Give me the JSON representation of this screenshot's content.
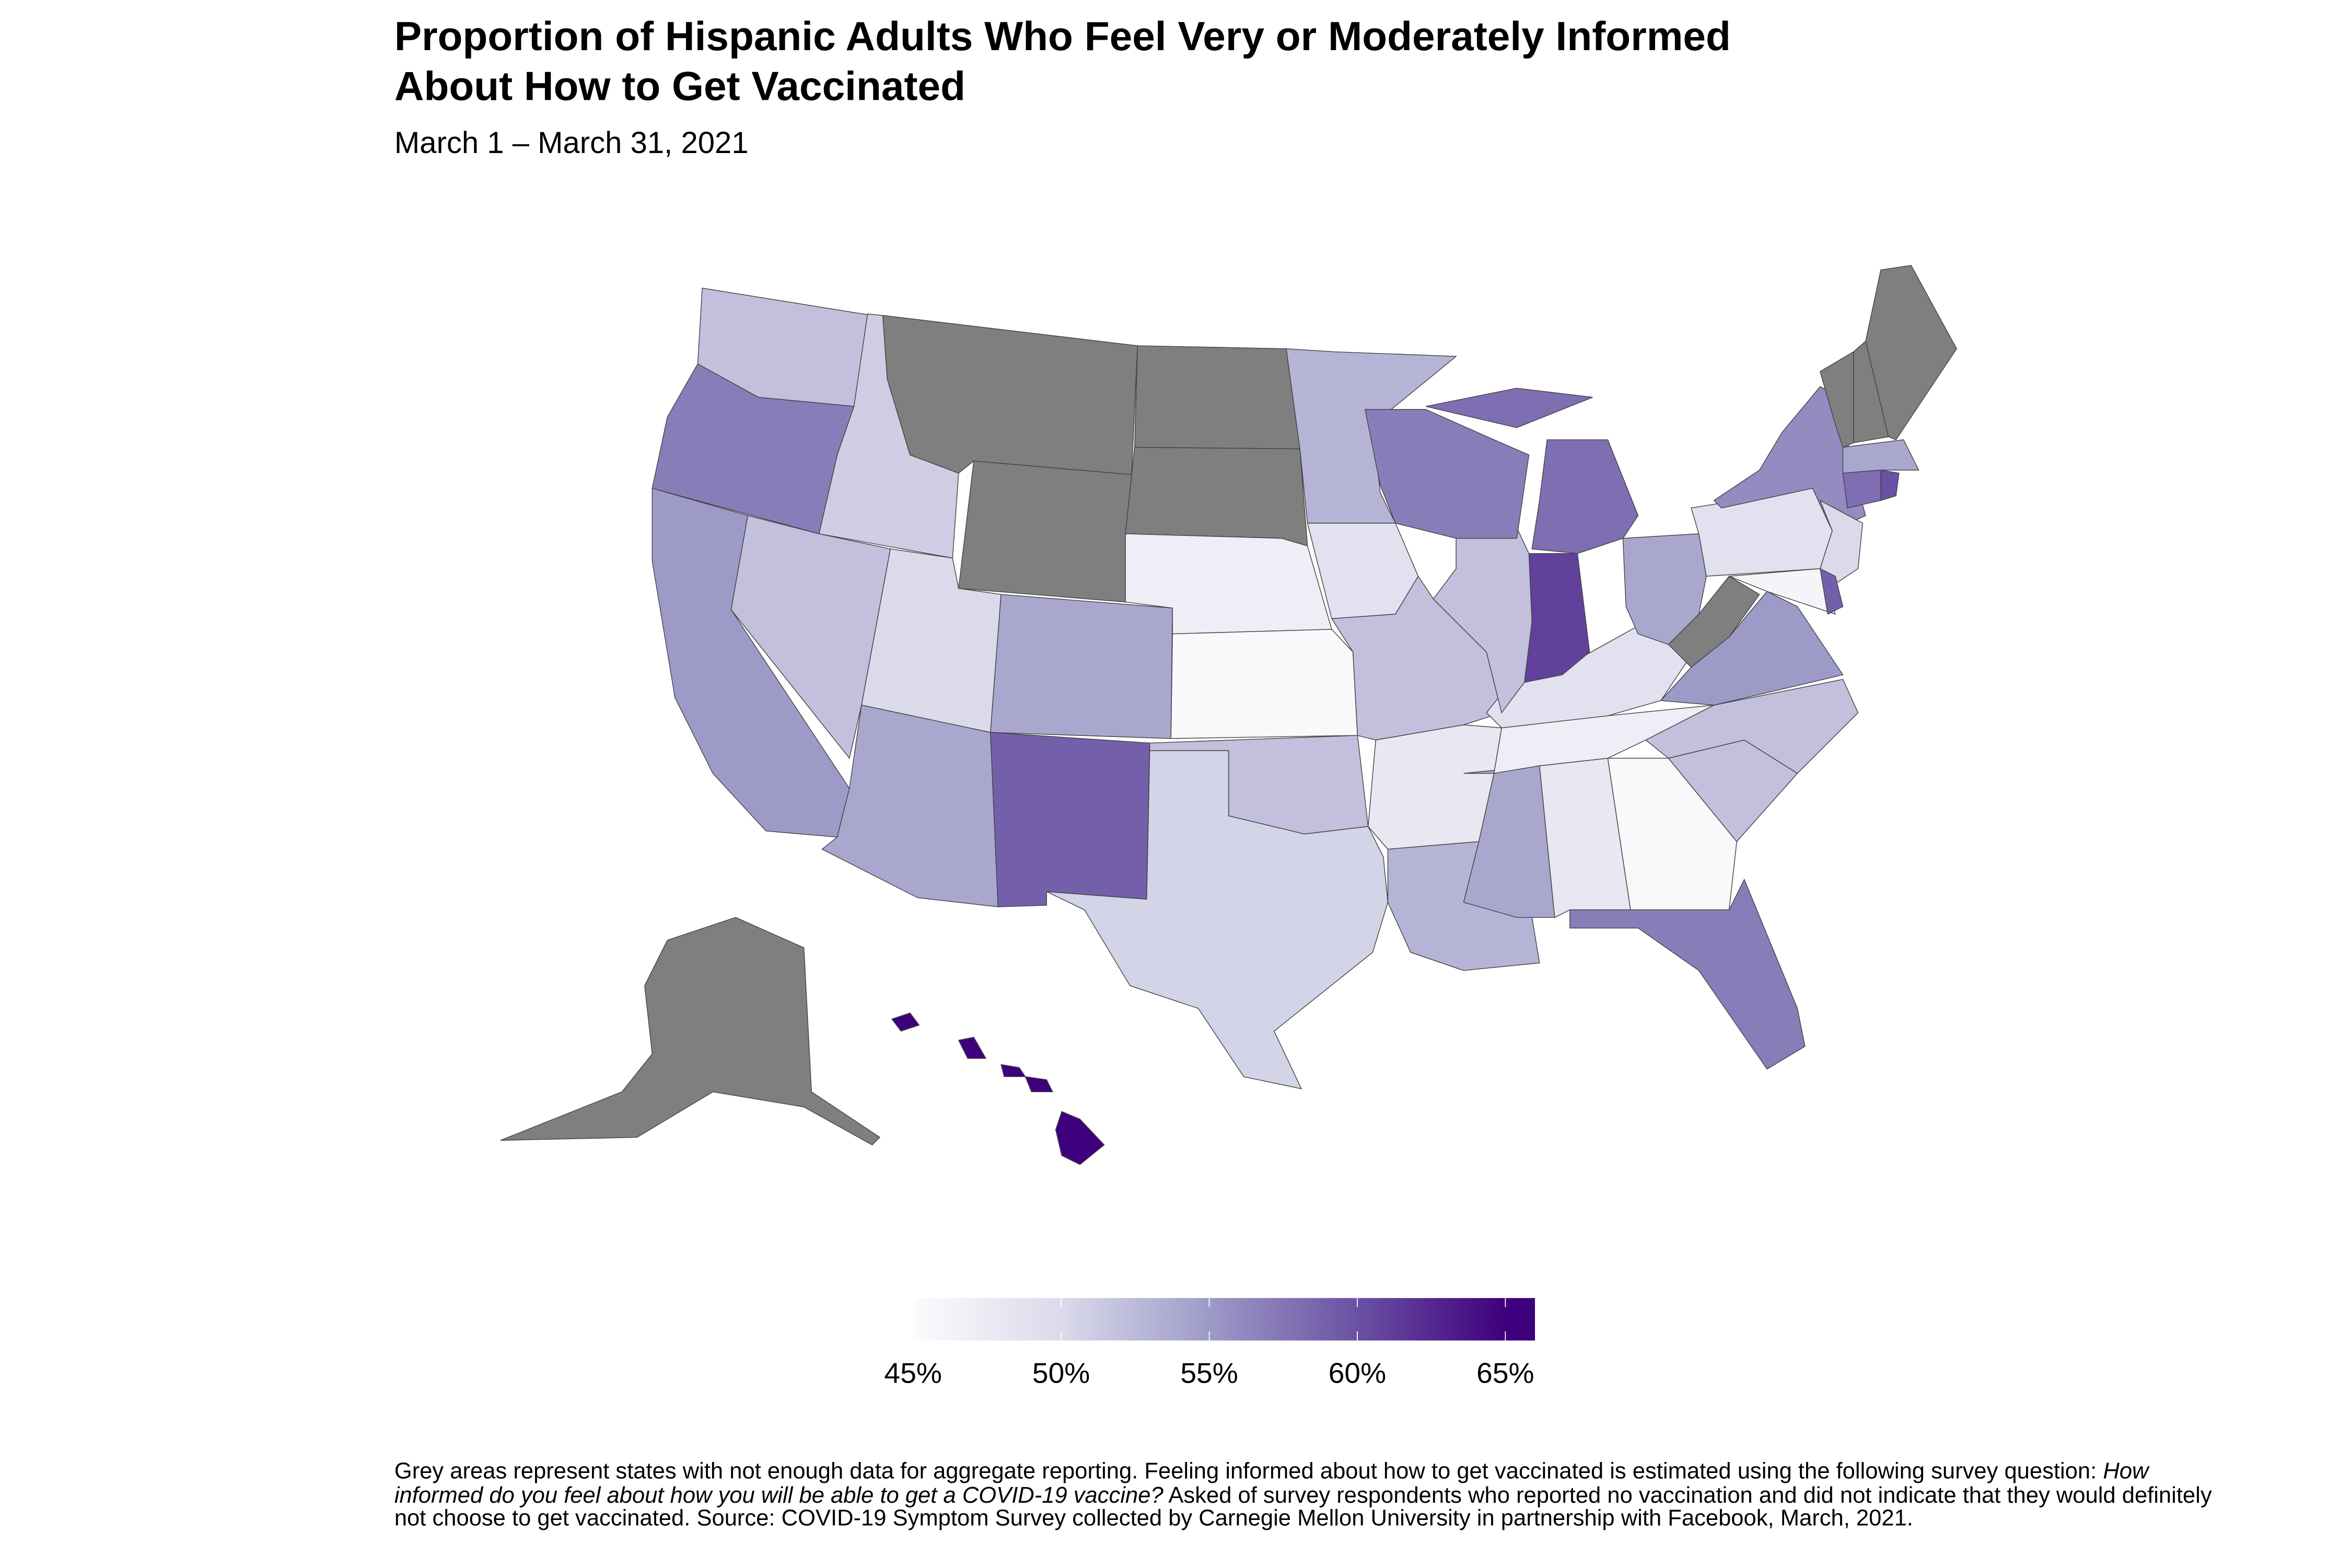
{
  "chart_data": {
    "type": "choropleth",
    "title": "Proportion of Hispanic Adults Who Feel Very or Moderately Informed About How to Get Vaccinated",
    "title_lines": [
      "Proportion of Hispanic Adults Who Feel Very or Moderately Informed",
      "About How to Get Vaccinated"
    ],
    "subtitle": "March 1 – March 31, 2021",
    "unit": "%",
    "legend": {
      "position": "bottom",
      "range": [
        45,
        66
      ],
      "ticks": [
        45,
        50,
        55,
        60,
        65
      ],
      "tick_labels": [
        "45%",
        "50%",
        "55%",
        "60%",
        "65%"
      ],
      "colors": [
        "#fcfbfd",
        "#dadaeb",
        "#9e9ac8",
        "#6a51a3",
        "#3f007d"
      ]
    },
    "missing_color": "#7f7f7f",
    "values": {
      "WA": 52,
      "OR": 57,
      "CA": 55,
      "NV": 52,
      "ID": 51,
      "UT": 50,
      "AZ": 54,
      "NM": 59,
      "CO": 54,
      "TX": 50.5,
      "OK": 52,
      "KS": 45.5,
      "NE": 47,
      "MN": 53,
      "IA": 49,
      "MO": 52,
      "AR": 48,
      "LA": 53,
      "MS": 54,
      "AL": 48,
      "GA": 45.5,
      "FL": 57,
      "SC": 52,
      "NC": 52,
      "VA": 55,
      "KY": 49,
      "TN": 47,
      "IL": 52,
      "WI": 57,
      "MI": 58,
      "IN": 61,
      "OH": 54,
      "PA": 49,
      "NY": 56,
      "NJ": 50,
      "MD": 46,
      "DE": 59,
      "CT": 58,
      "RI": 60,
      "MA": 54,
      "HI": 66,
      "MT": null,
      "WY": null,
      "ND": null,
      "SD": null,
      "AK": null,
      "WV": null,
      "VT": null,
      "NH": null,
      "ME": null
    }
  },
  "footnote": {
    "part1": "Grey areas represent states with not enough data for aggregate reporting. Feeling informed about how to get vaccinated is estimated using the following survey question: ",
    "question": "How informed do you feel about how you will be able to get a COVID-19 vaccine?",
    "part2": " Asked of survey respondents who reported no vaccination and did not indicate that they would definitely not choose to get vaccinated. Source: COVID-19 Symptom Survey collected by Carnegie Mellon University in partnership with Facebook, March, 2021."
  }
}
